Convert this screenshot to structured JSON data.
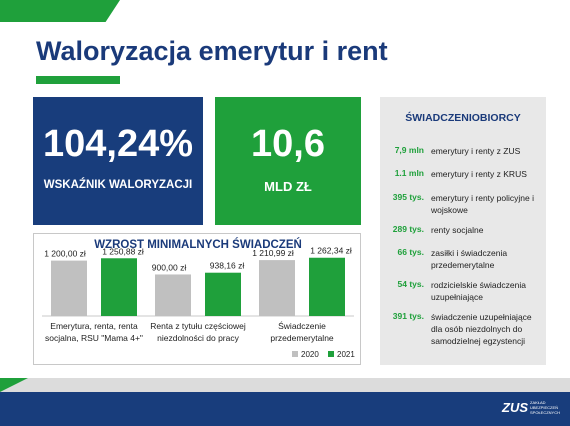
{
  "title": "Waloryzacja emerytur i rent",
  "kpi": [
    {
      "value": "104,24%",
      "label": "WSKAŹNIK WALORYZACJI"
    },
    {
      "value": "10,6",
      "label": "MLD ZŁ"
    }
  ],
  "chart_data": {
    "type": "bar",
    "title": "WZROST MINIMALNYCH ŚWIADCZEŃ",
    "categories": [
      "Emerytura, renta, renta socjalna, RSU \"Mama 4+\"",
      "Renta z tytułu częściowej niezdolności do pracy",
      "Świadczenie przedemerytalne"
    ],
    "category_lines": [
      [
        "Emerytura, renta, renta",
        "socjalna, RSU \"Mama 4+\""
      ],
      [
        "Renta z tytułu częściowej",
        "niezdolności do pracy"
      ],
      [
        "Świadczenie",
        "przedemerytalne"
      ]
    ],
    "series": [
      {
        "name": "2020",
        "values": [
          1200.0,
          900.0,
          1210.99
        ],
        "labels": [
          "1 200,00 zł",
          "900,00 zł",
          "1 210,99 zł"
        ],
        "color": "#c0c0c0"
      },
      {
        "name": "2021",
        "values": [
          1250.88,
          938.16,
          1262.34
        ],
        "labels": [
          "1 250,88 zł",
          "938,16 zł",
          "1 262,34 zł"
        ],
        "color": "#1fa03b"
      }
    ],
    "ylim": [
      0,
      1300
    ],
    "legend": "bottom-right"
  },
  "beneficiaries": {
    "title": "ŚWIADCZENIOBIORCY",
    "rows": [
      {
        "value": "7,9 mln",
        "desc": "emerytury i renty z ZUS"
      },
      {
        "value": "1.1 mln",
        "desc": "emerytury i renty z KRUS"
      },
      {
        "value": "395 tys.",
        "desc": "emerytury i renty policyjne i wojskowe"
      },
      {
        "value": "289 tys.",
        "desc": "renty socjalne"
      },
      {
        "value": "66 tys.",
        "desc": "zasiłki i świadczenia przedemerytalne"
      },
      {
        "value": "54 tys.",
        "desc": "rodzicielskie świadczenia uzupełniające"
      },
      {
        "value": "391 tys.",
        "desc": "świadczenie uzupełniające dla osób niezdolnych do samodzielnej egzystencji"
      }
    ]
  },
  "logo": {
    "main": "ZUS",
    "sub": "ZAKŁAD UBEZPIECZEŃ SPOŁECZNYCH"
  },
  "colors": {
    "navy": "#183d7c",
    "green": "#1fa03b",
    "gray": "#c0c0c0"
  }
}
